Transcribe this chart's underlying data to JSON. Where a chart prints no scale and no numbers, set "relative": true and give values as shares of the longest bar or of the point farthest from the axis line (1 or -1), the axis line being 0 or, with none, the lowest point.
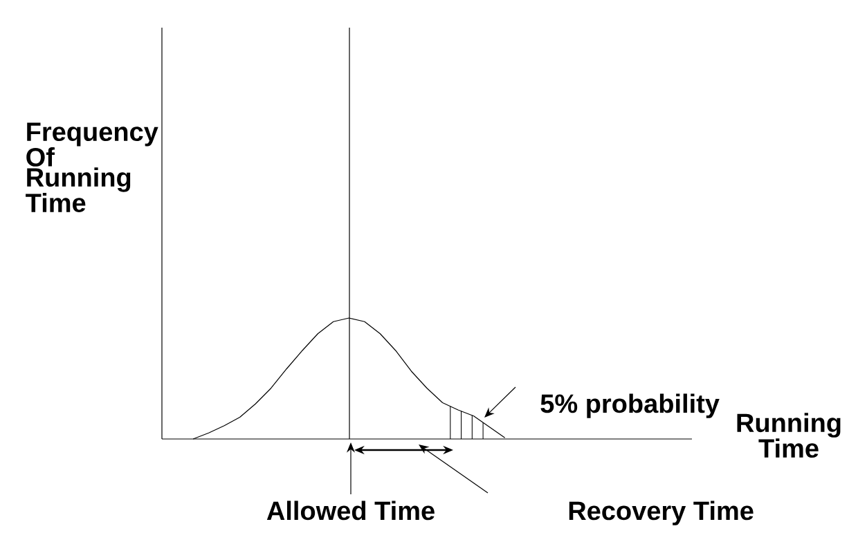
{
  "chart_data": {
    "type": "line",
    "relative": true,
    "ylabel": "Frequency Of Running Time",
    "xlabel": "Running Time",
    "color": "#000000",
    "categories": [
      null,
      null,
      null,
      null,
      null,
      null,
      null,
      null,
      null,
      null,
      null,
      null,
      null,
      null,
      null,
      null,
      null,
      null,
      null,
      null,
      null,
      null,
      null,
      null,
      null,
      null,
      null,
      null,
      null,
      null,
      null,
      null,
      null,
      null,
      null
    ],
    "values": [
      null,
      null,
      0.0,
      0.05,
      0.11,
      0.18,
      0.29,
      0.42,
      0.58,
      0.73,
      0.87,
      0.97,
      1.0,
      0.97,
      0.87,
      0.73,
      0.56,
      0.42,
      0.3,
      0.24,
      0.19,
      0.1,
      0.01,
      null,
      null,
      null,
      null,
      null,
      null,
      null,
      null,
      null,
      null,
      null,
      null
    ],
    "annotations": [
      "Allowed Time",
      "Recovery Time",
      "5% probability"
    ]
  }
}
